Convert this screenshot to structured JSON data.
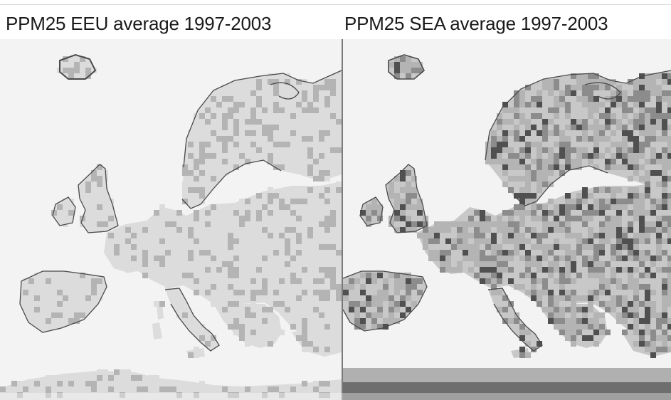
{
  "panels": [
    {
      "id": "eeu",
      "title": "PPM25 EEU average 1997-2003"
    },
    {
      "id": "sea",
      "title": "PPM25 SEA average 1997-2003"
    }
  ],
  "colors": {
    "background": "#f3f3f3",
    "light": "#dcdcdc",
    "medium": "#b4b4b4",
    "dark": "#8c8c8c",
    "very_dark": "#505050",
    "coastline": "#4a4a4a"
  }
}
